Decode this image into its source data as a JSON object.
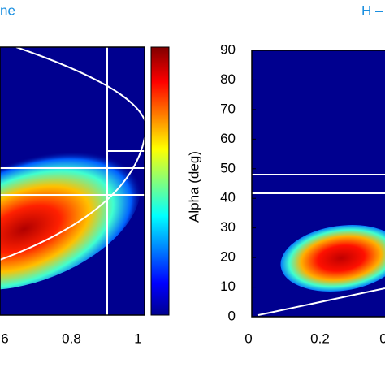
{
  "left_panel": {
    "title": "ne",
    "xticks": [
      6,
      0.8,
      1
    ]
  },
  "right_panel": {
    "title": "H –",
    "ylabel": "Alpha (deg)",
    "yticks": [
      0,
      10,
      20,
      30,
      40,
      50,
      60,
      70,
      80,
      90
    ],
    "ylim": [
      0,
      90
    ],
    "xticks": [
      0,
      0.2,
      0
    ]
  }
}
